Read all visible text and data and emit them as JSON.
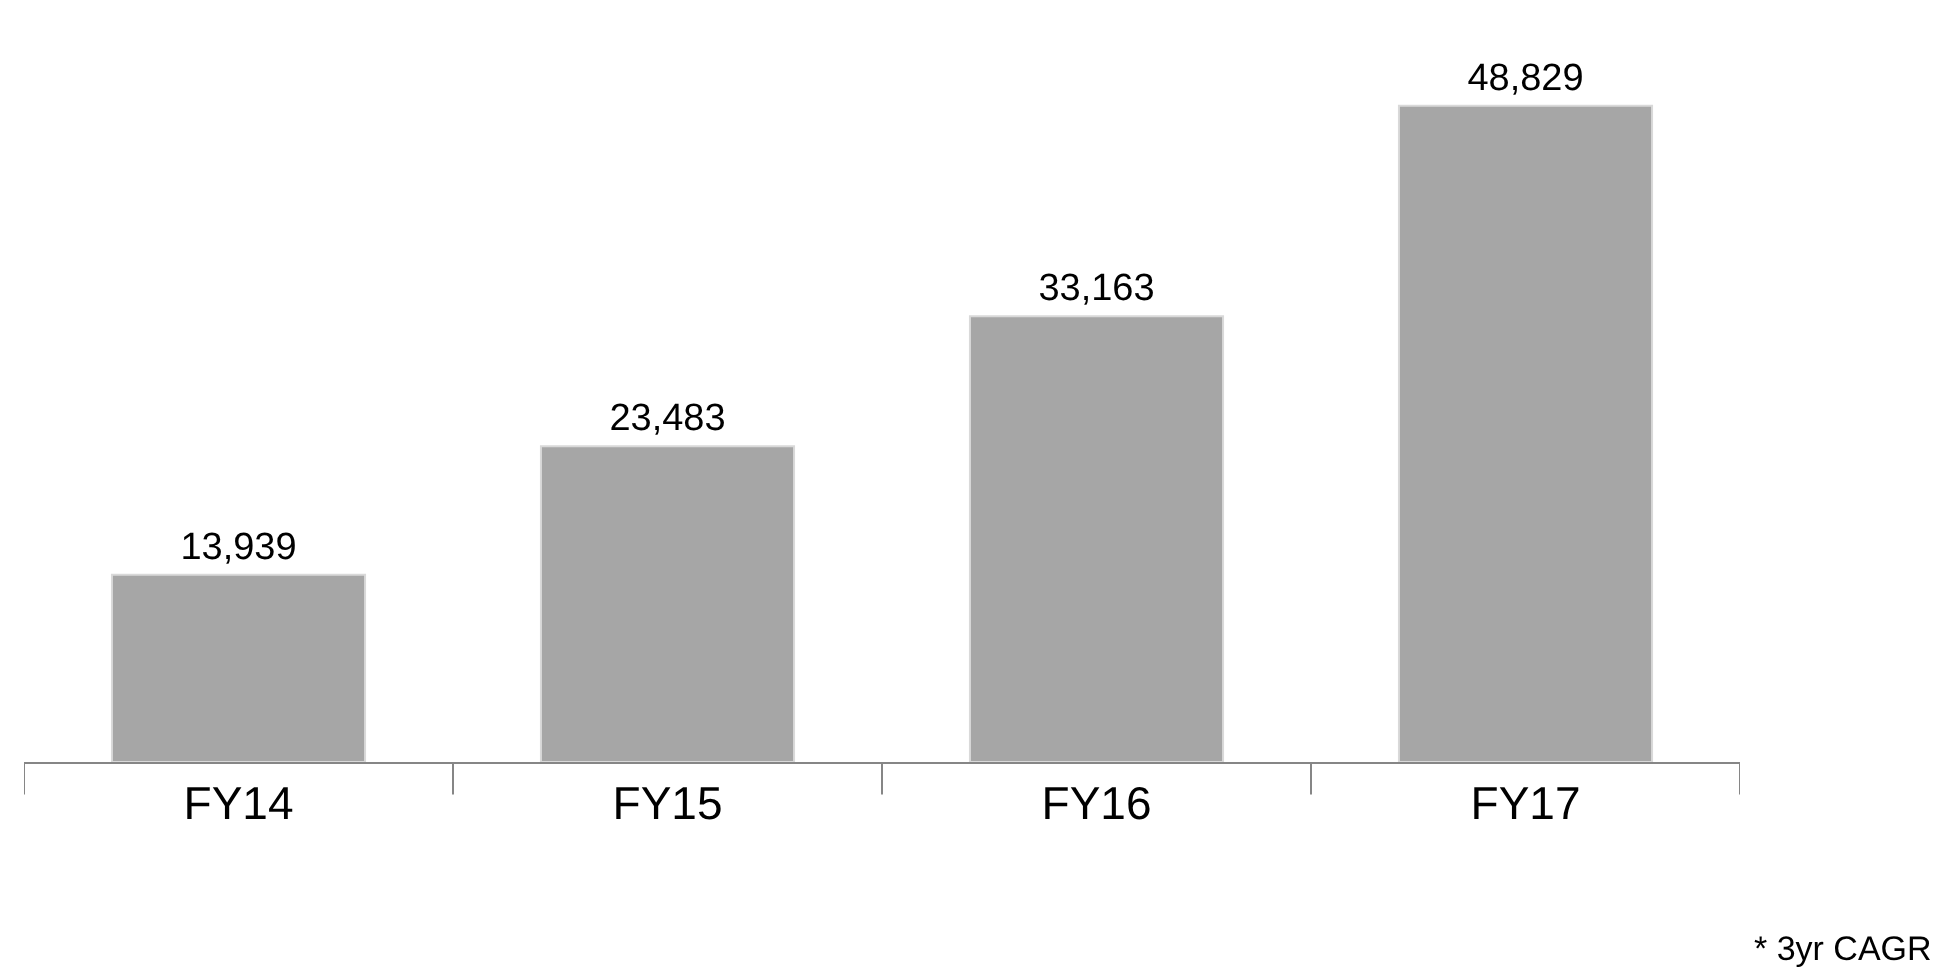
{
  "chart_data": {
    "type": "bar",
    "categories": [
      "FY14",
      "FY15",
      "FY16",
      "FY17"
    ],
    "values": [
      13939,
      23483,
      33163,
      48829
    ],
    "value_labels": [
      "13,939",
      "23,483",
      "33,163",
      "48,829"
    ],
    "color": "#a6a6a6",
    "annotations": [
      "* 3yr CAGR"
    ]
  }
}
